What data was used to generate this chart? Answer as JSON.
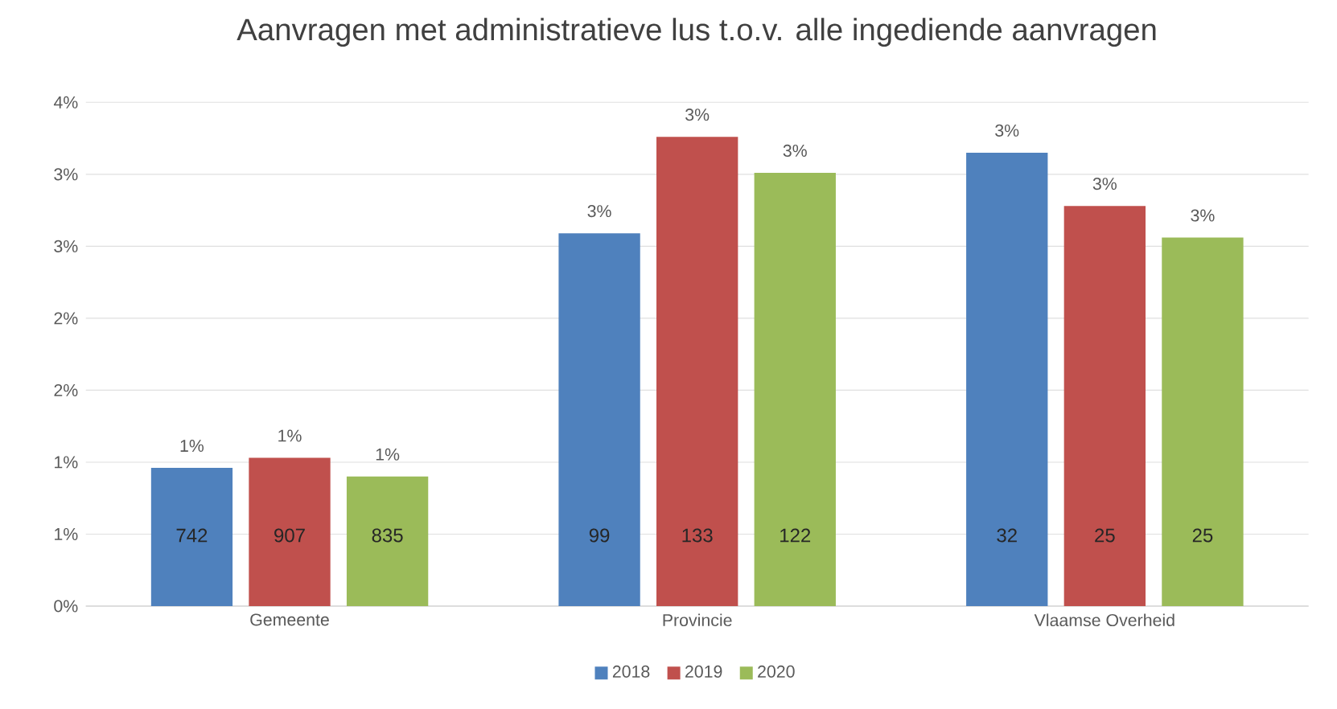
{
  "chart_data": {
    "type": "bar",
    "title": "Aanvragen met administratieve lus t.o.v. alle ingediende aanvragen",
    "categories": [
      "Gemeente",
      "Provincie",
      "Vlaamse Overheid"
    ],
    "series": [
      {
        "name": "2018",
        "color": "#4f81bd",
        "values": [
          0.96,
          2.59,
          3.15
        ],
        "value_labels": [
          "1%",
          "3%",
          "3%"
        ]
      },
      {
        "name": "2019",
        "color": "#c0504d",
        "values": [
          1.03,
          3.26,
          2.78
        ],
        "value_labels": [
          "1%",
          "3%",
          "3%"
        ]
      },
      {
        "name": "2020",
        "color": "#9bbb59",
        "values": [
          0.9,
          3.01,
          2.56
        ],
        "value_labels": [
          "1%",
          "3%",
          "3%"
        ]
      }
    ],
    "ylim": [
      0,
      3.5
    ],
    "yticks": [
      {
        "value": 0,
        "label": "0%"
      },
      {
        "value": 0.5,
        "label": "1%"
      },
      {
        "value": 1,
        "label": "1%"
      },
      {
        "value": 1.5,
        "label": "2%"
      },
      {
        "value": 2,
        "label": "2%"
      },
      {
        "value": 2.5,
        "label": "3%"
      },
      {
        "value": 3,
        "label": "3%"
      },
      {
        "value": 3.5,
        "label": "4%"
      }
    ],
    "grid": "y",
    "legend": "bottom",
    "annotations": [
      "742",
      "907",
      "835",
      "99",
      "133",
      "122",
      "32",
      "25",
      "25"
    ]
  }
}
